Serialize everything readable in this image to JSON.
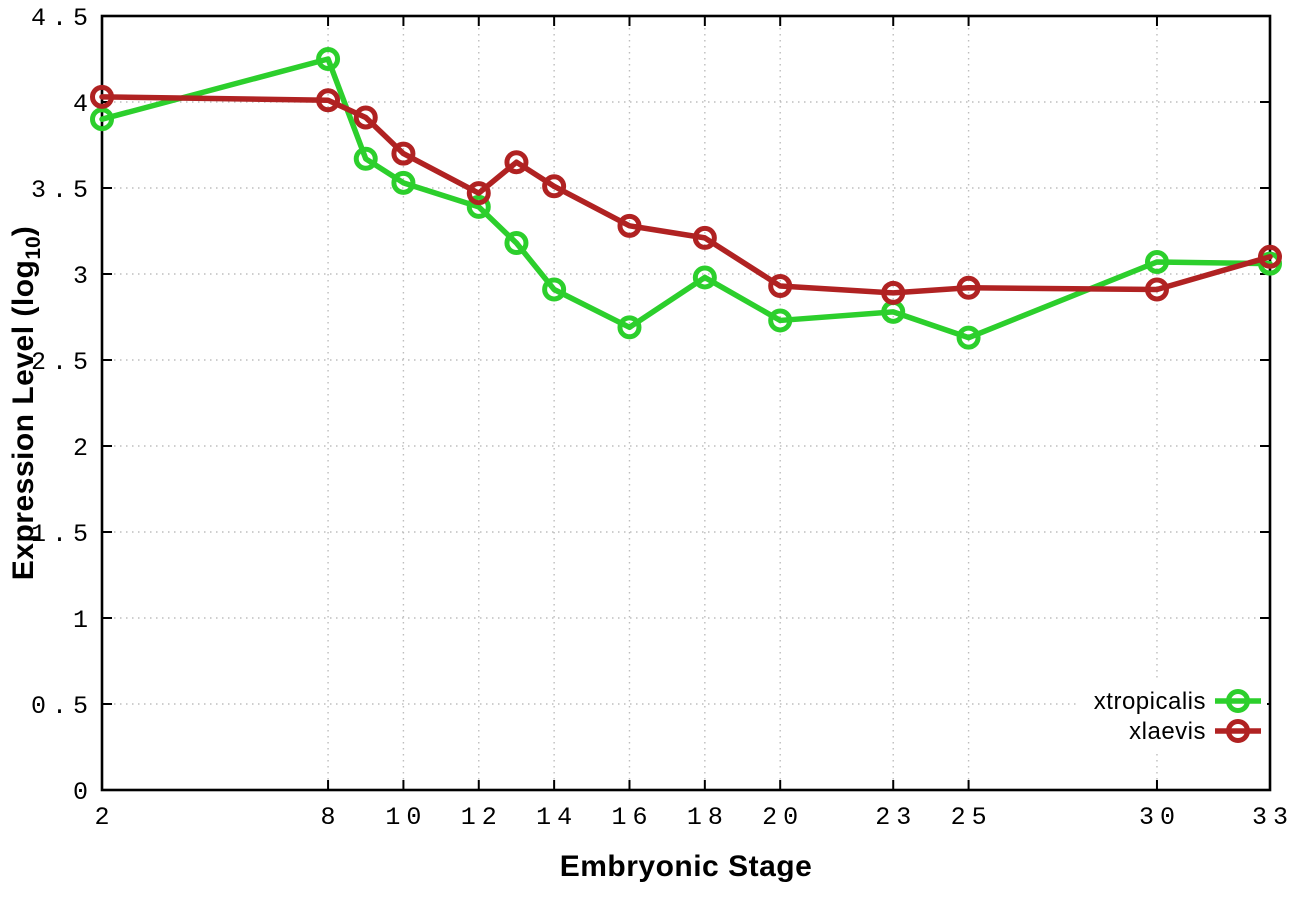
{
  "chart_data": {
    "type": "line",
    "title": "",
    "xlabel": "Embryonic Stage",
    "ylabel": {
      "prefix": "Expression Level (log",
      "subscript": "10",
      "suffix": ")"
    },
    "x_ticks": [
      2,
      8,
      10,
      12,
      14,
      16,
      18,
      20,
      23,
      25,
      30,
      33
    ],
    "y_ticks": [
      0,
      0.5,
      1,
      1.5,
      2,
      2.5,
      3,
      3.5,
      4,
      4.5
    ],
    "xlim": [
      2,
      33
    ],
    "ylim": [
      0,
      4.5
    ],
    "grid": true,
    "legend_position": "bottom-right",
    "colors": {
      "grid": "#bdbdbd",
      "axis": "#000000",
      "background": "#ffffff"
    },
    "x": [
      2,
      8,
      9,
      10,
      12,
      13,
      14,
      16,
      18,
      20,
      23,
      25,
      30,
      33
    ],
    "series": [
      {
        "name": "xtropicalis",
        "color": "#2ccf2c",
        "values": [
          3.9,
          4.25,
          3.67,
          3.53,
          3.39,
          3.18,
          2.91,
          2.69,
          2.98,
          2.73,
          2.78,
          2.63,
          3.07,
          3.06
        ]
      },
      {
        "name": "xlaevis",
        "color": "#b02222",
        "values": [
          4.03,
          4.01,
          3.91,
          3.7,
          3.47,
          3.65,
          3.51,
          3.28,
          3.21,
          2.93,
          2.89,
          2.92,
          2.91,
          3.1
        ]
      }
    ]
  }
}
